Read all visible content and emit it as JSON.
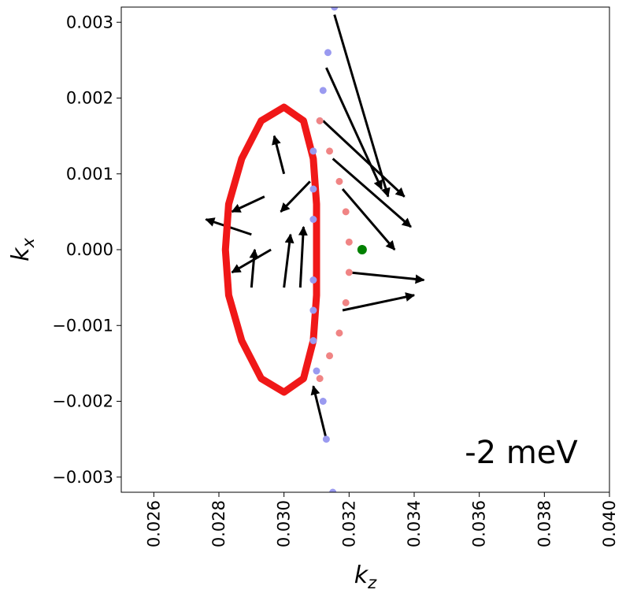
{
  "chart_data": {
    "type": "scatter",
    "xlabel": {
      "text": "k",
      "sub": "z"
    },
    "ylabel": {
      "text": "k",
      "sub": "x"
    },
    "annotation": "-2 meV",
    "xlim": [
      0.025,
      0.04
    ],
    "ylim": [
      -0.0032,
      0.0032
    ],
    "xticks": [
      0.026,
      0.028,
      {
        "value": 0.03,
        "label": "0.030"
      },
      0.032,
      0.034,
      0.036,
      0.038,
      {
        "value": 0.04,
        "label": "0.040"
      }
    ],
    "yticks": [
      {
        "value": -0.003,
        "label": "−0.003"
      },
      {
        "value": -0.002,
        "label": "−0.002"
      },
      {
        "value": -0.001,
        "label": "−0.001"
      },
      {
        "value": 0,
        "label": "0.000"
      },
      0.001,
      0.002,
      0.003
    ],
    "series": [
      {
        "style": "ring",
        "color": "#f01818",
        "x": [
          0.03,
          0.0306,
          0.0309,
          0.031,
          0.031,
          0.031,
          0.0309,
          0.0306,
          0.03,
          0.0293,
          0.0287,
          0.0283,
          0.0282,
          0.0283,
          0.0287,
          0.0293
        ],
        "y": [
          0.00188,
          0.0017,
          0.0012,
          0.0006,
          0,
          -0.0006,
          -0.0012,
          -0.0017,
          -0.00188,
          -0.0017,
          -0.0012,
          -0.0006,
          0,
          0.0006,
          0.0012,
          0.0017
        ]
      },
      {
        "style": "dots",
        "color": "#9a9af0",
        "x": [
          0.03155,
          0.03135,
          0.0312,
          0.0311,
          0.0309,
          0.0309,
          0.0309,
          0.0309,
          0.0309,
          0.0309,
          0.031,
          0.0312,
          0.0313,
          0.0315
        ],
        "y": [
          0.0032,
          0.0026,
          0.0021,
          0.0017,
          0.0013,
          0.0008,
          0.0004,
          -0.0004,
          -0.0008,
          -0.0012,
          -0.0016,
          -0.002,
          -0.0025,
          -0.0032
        ]
      },
      {
        "style": "dots",
        "color": "#f08484",
        "x": [
          0.0311,
          0.0314,
          0.0317,
          0.0319,
          0.032,
          0.032,
          0.0319,
          0.0317,
          0.0314,
          0.0311
        ],
        "y": [
          0.0017,
          0.0013,
          0.0009,
          0.0005,
          0.0001,
          -0.0003,
          -0.0007,
          -0.0011,
          -0.0014,
          -0.0017
        ]
      },
      {
        "style": "dot",
        "color": "#008000",
        "x": [
          0.0324
        ],
        "y": [
          0
        ]
      }
    ],
    "arrows": {
      "color": "#000000",
      "x": [
        0.029,
        0.0294,
        0.0312,
        0.0315,
        0.0318,
        0.032,
        0.0318,
        0.029,
        0.03,
        0.0305,
        0.0296,
        0.03155,
        0.0313,
        0.0313,
        0.03,
        0.0308
      ],
      "y": [
        0.0002,
        0.0007,
        0.0017,
        0.0012,
        0.0008,
        -0.0003,
        -0.0008,
        -0.0005,
        -0.0005,
        -0.0005,
        0.0,
        0.0031,
        0.0024,
        -0.0025,
        0.001,
        0.0009
      ],
      "u": [
        -0.0014,
        -0.001,
        0.0025,
        0.0024,
        0.0016,
        0.0023,
        0.0022,
        0.0001,
        0.0002,
        0.0001,
        -0.0012,
        0.00165,
        0.0017,
        -0.0004,
        -0.0003,
        -0.0009
      ],
      "v": [
        0.0002,
        -0.0002,
        -0.001,
        -0.0009,
        -0.0008,
        -0.0001,
        0.0002,
        0.0005,
        0.0007,
        0.0008,
        -0.0003,
        -0.0024,
        -0.0016,
        0.0007,
        0.0005,
        -0.0004
      ]
    }
  }
}
